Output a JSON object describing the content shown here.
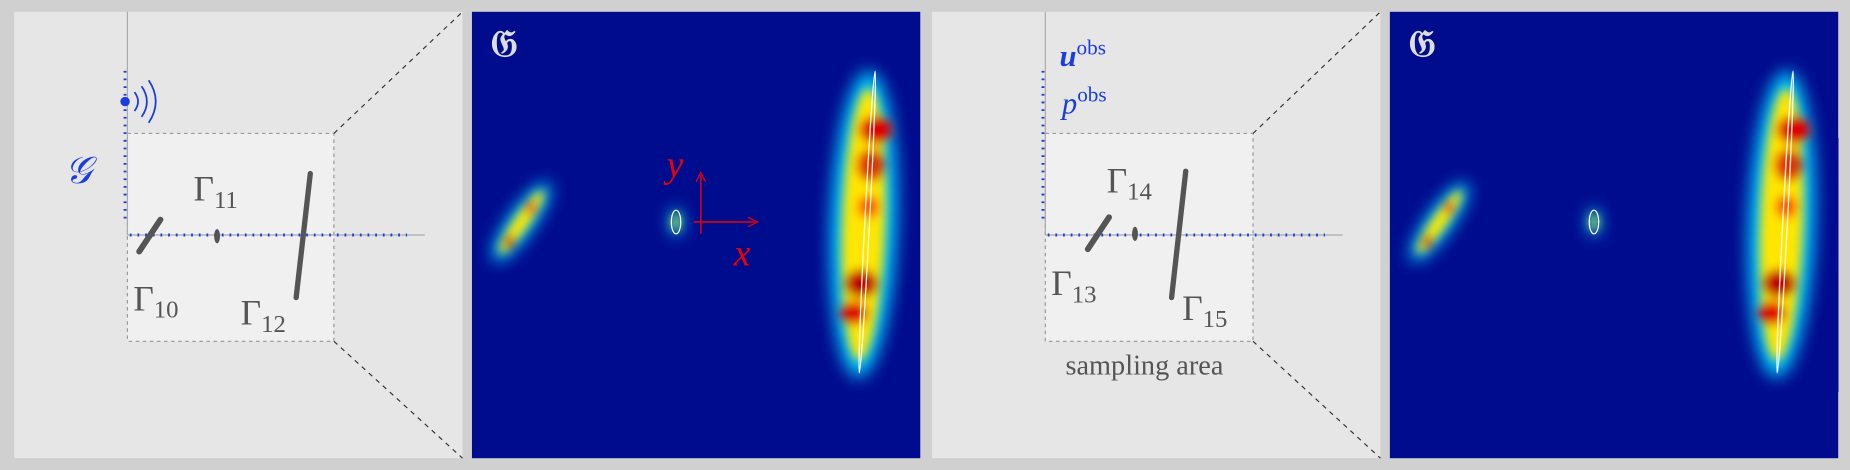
{
  "panel_1": {
    "source_label": "𝒢",
    "obstacles": [
      {
        "symbol": "Γ",
        "subscript": "10"
      },
      {
        "symbol": "Γ",
        "subscript": "11"
      },
      {
        "symbol": "Γ",
        "subscript": "12"
      }
    ]
  },
  "panel_2": {
    "label": "𝔊",
    "axes": {
      "y": "y",
      "x": "x"
    }
  },
  "panel_3": {
    "measurements": [
      {
        "symbol": "u",
        "superscript": "obs"
      },
      {
        "symbol": "p",
        "superscript": "obs"
      }
    ],
    "obstacles": [
      {
        "symbol": "Γ",
        "subscript": "13"
      },
      {
        "symbol": "Γ",
        "subscript": "14"
      },
      {
        "symbol": "Γ",
        "subscript": "15"
      }
    ],
    "region_label": "sampling area"
  },
  "panel_4": {
    "label": "𝔊"
  }
}
